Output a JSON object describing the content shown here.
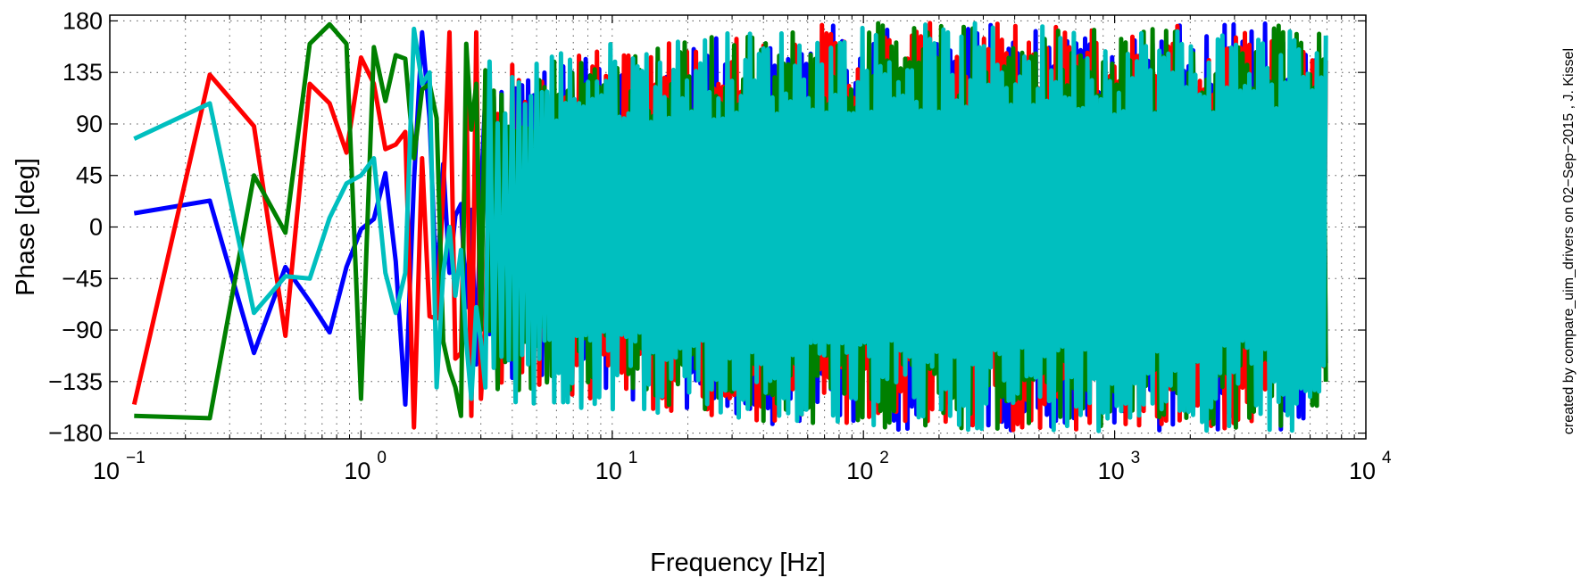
{
  "chart_data": {
    "type": "line",
    "title": "",
    "xlabel": "Frequency [Hz]",
    "ylabel": "Phase [deg]",
    "x_scale": "log",
    "xlim": [
      0.1,
      10000
    ],
    "ylim": [
      -185,
      185
    ],
    "x_ticks": [
      {
        "base": "10",
        "exp": "−1",
        "value": 0.1
      },
      {
        "base": "10",
        "exp": "0",
        "value": 1
      },
      {
        "base": "10",
        "exp": "1",
        "value": 10
      },
      {
        "base": "10",
        "exp": "2",
        "value": 100
      },
      {
        "base": "10",
        "exp": "3",
        "value": 1000
      },
      {
        "base": "10",
        "exp": "4",
        "value": 10000
      }
    ],
    "y_ticks": [
      {
        "label": "180",
        "value": 180
      },
      {
        "label": "135",
        "value": 135
      },
      {
        "label": "90",
        "value": 90
      },
      {
        "label": "45",
        "value": 45
      },
      {
        "label": "0",
        "value": 0
      },
      {
        "label": "−45",
        "value": -45
      },
      {
        "label": "−90",
        "value": -90
      },
      {
        "label": "−135",
        "value": -135
      },
      {
        "label": "−180",
        "value": -180
      }
    ],
    "grid": true,
    "legend": "none",
    "annotation": "created by compare_uim_drivers on 02−Sep−2015 , J. Kissel",
    "series": [
      {
        "color": "#0000ff",
        "x": [
          0.125,
          0.25,
          0.375,
          0.5,
          0.625,
          0.75,
          0.875,
          1.0,
          1.125,
          1.25,
          1.375,
          1.5,
          1.625,
          1.75,
          1.875,
          2.0,
          2.125,
          2.25,
          2.375,
          2.5,
          2.625,
          2.75,
          2.875,
          3.0
        ],
        "y": [
          12,
          23,
          -110,
          -35,
          -65,
          -92,
          -35,
          -2,
          7,
          47,
          -30,
          -155,
          40,
          170,
          95,
          -60,
          55,
          -40,
          10,
          20,
          -70,
          15,
          -120,
          30
        ],
        "noise_from": 3.0,
        "noise_amp_start": 0.75,
        "noise_amp_end": 0.99
      },
      {
        "color": "#ff0000",
        "x": [
          0.125,
          0.25,
          0.375,
          0.5,
          0.625,
          0.75,
          0.875,
          1.0,
          1.125,
          1.25,
          1.375,
          1.5,
          1.625,
          1.75,
          1.875,
          2.0,
          2.125,
          2.25,
          2.375,
          2.5,
          2.625,
          2.75,
          2.875,
          3.0
        ],
        "y": [
          -155,
          133,
          88,
          -95,
          125,
          108,
          65,
          148,
          125,
          68,
          72,
          83,
          -175,
          60,
          -78,
          -80,
          30,
          170,
          -115,
          -110,
          125,
          -165,
          170,
          -150
        ],
        "noise_from": 3.0,
        "noise_amp_start": 0.8,
        "noise_amp_end": 0.99
      },
      {
        "color": "#008000",
        "x": [
          0.125,
          0.25,
          0.375,
          0.5,
          0.625,
          0.75,
          0.875,
          1.0,
          1.125,
          1.25,
          1.375,
          1.5,
          1.625,
          1.75,
          1.875,
          2.0,
          2.125,
          2.25,
          2.375,
          2.5,
          2.625,
          2.75,
          2.875,
          3.0
        ],
        "y": [
          -165,
          -167,
          45,
          -5,
          160,
          177,
          160,
          -150,
          157,
          110,
          150,
          147,
          60,
          120,
          125,
          95,
          -100,
          -125,
          -140,
          -165,
          160,
          85,
          125,
          -90
        ],
        "noise_from": 3.0,
        "noise_amp_start": 0.8,
        "noise_amp_end": 0.99
      },
      {
        "color": "#00bfbf",
        "x": [
          0.125,
          0.25,
          0.375,
          0.5,
          0.625,
          0.75,
          0.875,
          1.0,
          1.125,
          1.25,
          1.375,
          1.5,
          1.625,
          1.75,
          1.875,
          2.0,
          2.125,
          2.25,
          2.375,
          2.5,
          2.625,
          2.75,
          2.875,
          3.0
        ],
        "y": [
          77,
          108,
          -75,
          -43,
          -45,
          8,
          38,
          45,
          60,
          -40,
          -75,
          -40,
          173,
          125,
          135,
          -140,
          -40,
          0,
          -60,
          -20,
          -100,
          -150,
          -70,
          -100
        ],
        "noise_from": 3.0,
        "noise_amp_start": 0.85,
        "noise_amp_end": 0.99
      }
    ],
    "x_max_data": 7000
  }
}
